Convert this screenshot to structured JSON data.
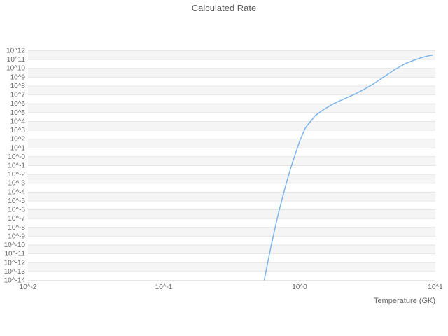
{
  "chart_data": {
    "type": "line",
    "title": "Calculated Rate",
    "xlabel": "Temperature (GK)",
    "ylabel": "",
    "x_scale": "log",
    "y_scale": "log",
    "xlim_log10": [
      -2,
      1
    ],
    "ylim_log10": [
      -14,
      12
    ],
    "grid": "horizontal-bands",
    "legend": "none",
    "x_tick_labels": [
      "10^-2",
      "10^-1",
      "10^0",
      "10^1"
    ],
    "x_tick_log10": [
      -2,
      -1,
      0,
      1
    ],
    "y_tick_labels": [
      "10^12",
      "10^11",
      "10^10",
      "10^9",
      "10^8",
      "10^7",
      "10^6",
      "10^5",
      "10^4",
      "10^3",
      "10^2",
      "10^1",
      "10^-0",
      "10^-1",
      "10^-2",
      "10^-3",
      "10^-4",
      "10^-5",
      "10^-6",
      "10^-7",
      "10^-8",
      "10^-9",
      "10^-10",
      "10^-11",
      "10^-12",
      "10^-13",
      "10^-14"
    ],
    "y_tick_log10": [
      12,
      11,
      10,
      9,
      8,
      7,
      6,
      5,
      4,
      3,
      2,
      1,
      0,
      -1,
      -2,
      -3,
      -4,
      -5,
      -6,
      -7,
      -8,
      -9,
      -10,
      -11,
      -12,
      -13,
      -14
    ],
    "series": [
      {
        "name": "Calculated Rate",
        "color": "#7cb5ec",
        "x_gk": [
          0.55,
          0.58,
          0.62,
          0.66,
          0.7,
          0.75,
          0.8,
          0.85,
          0.9,
          1.0,
          1.1,
          1.3,
          1.5,
          1.8,
          2.2,
          2.6,
          3.0,
          3.5,
          4.0,
          5.0,
          6.0,
          7.0,
          8.0,
          9.0,
          9.5
        ],
        "y_rate_log10": [
          -14.0,
          -12.2,
          -10.0,
          -8.1,
          -6.4,
          -4.6,
          -3.0,
          -1.6,
          -0.4,
          1.7,
          3.2,
          4.6,
          5.3,
          6.0,
          6.6,
          7.1,
          7.6,
          8.2,
          8.8,
          9.8,
          10.5,
          10.9,
          11.2,
          11.4,
          11.45
        ]
      }
    ],
    "colors": {
      "line": "#7cb5ec",
      "grid": "#e6e6e6",
      "band": "#f5f5f5",
      "tick_text": "#666666",
      "title_text": "#595959",
      "background": "#ffffff"
    }
  }
}
